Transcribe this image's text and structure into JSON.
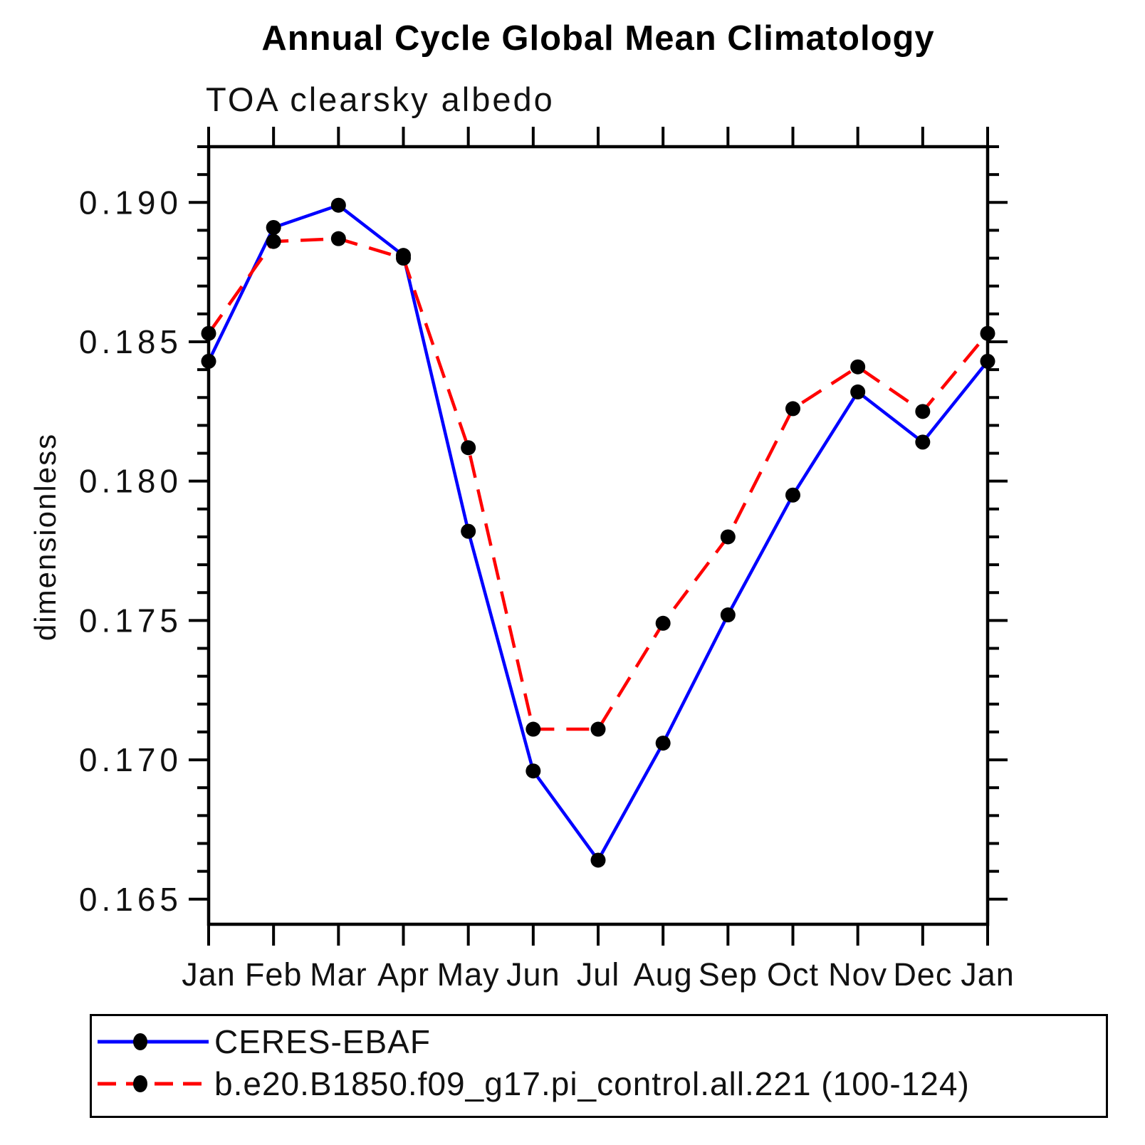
{
  "header": {
    "title": "Annual Cycle Global Mean Climatology",
    "subtitle": "TOA clearsky albedo"
  },
  "legend": {
    "entries": [
      {
        "label": "CERES-EBAF",
        "line_style": "solid",
        "line_color": "#0000ff",
        "marker": "filled-circle",
        "marker_color": "#000000"
      },
      {
        "label": "b.e20.B1850.f09_g17.pi_control.all.221 (100-124)",
        "line_style": "dashed",
        "line_color": "#ff0000",
        "marker": "filled-circle",
        "marker_color": "#000000"
      }
    ]
  },
  "chart_data": {
    "type": "line",
    "title": "Annual Cycle Global Mean Climatology",
    "subtitle": "TOA clearsky albedo",
    "xlabel": "",
    "ylabel": "dimensionless",
    "categories": [
      "Jan",
      "Feb",
      "Mar",
      "Apr",
      "May",
      "Jun",
      "Jul",
      "Aug",
      "Sep",
      "Oct",
      "Nov",
      "Dec",
      "Jan"
    ],
    "series": [
      {
        "name": "CERES-EBAF",
        "color": "#0000ff",
        "style": "solid",
        "marker_color": "#000000",
        "values": [
          0.1843,
          0.1891,
          0.1899,
          0.1881,
          0.1782,
          0.1696,
          0.1664,
          0.1706,
          0.1752,
          0.1795,
          0.1832,
          0.1814,
          0.1843
        ]
      },
      {
        "name": "b.e20.B1850.f09_g17.pi_control.all.221 (100-124)",
        "color": "#ff0000",
        "style": "dashed",
        "marker_color": "#000000",
        "values": [
          0.1853,
          0.1886,
          0.1887,
          0.188,
          0.1812,
          0.1711,
          0.1711,
          0.1749,
          0.178,
          0.1826,
          0.1841,
          0.1825,
          0.1853
        ]
      }
    ],
    "ylim": [
      0.1641,
      0.192
    ],
    "y_major_ticks": [
      0.165,
      0.17,
      0.175,
      0.18,
      0.185,
      0.19
    ],
    "y_tick_labels": [
      "0.165",
      "0.170",
      "0.175",
      "0.180",
      "0.185",
      "0.190"
    ],
    "y_minor_step": 0.001,
    "grid": false,
    "legend_position": "bottom",
    "axis_color": "#000000"
  }
}
